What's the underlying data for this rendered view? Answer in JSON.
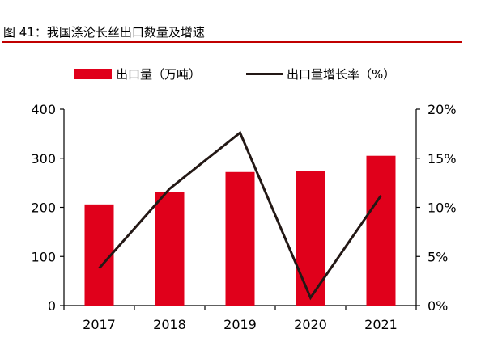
{
  "figure": {
    "title": "图 41：我国涤沦长丝出口数量及增速",
    "accent_color": "#C00000"
  },
  "chart_data": {
    "type": "bar",
    "categories": [
      "2017",
      "2018",
      "2019",
      "2020",
      "2021"
    ],
    "series": [
      {
        "name": "出口量（万吨）",
        "type": "bar",
        "axis": "left",
        "color": "#E0001B",
        "values": [
          206,
          231,
          272,
          274,
          305
        ]
      },
      {
        "name": "出口量增长率（%）",
        "type": "line",
        "axis": "right",
        "color": "#231815",
        "values": [
          3.8,
          11.9,
          17.6,
          0.8,
          11.2
        ]
      }
    ],
    "y_left": {
      "ylim": [
        0,
        400
      ],
      "ticks": [
        0,
        100,
        200,
        300,
        400
      ],
      "tick_labels": [
        "0",
        "100",
        "200",
        "300",
        "400"
      ]
    },
    "y_right": {
      "ylim": [
        0,
        20
      ],
      "ticks": [
        0,
        5,
        10,
        15,
        20
      ],
      "tick_labels": [
        "0%",
        "5%",
        "10%",
        "15%",
        "20%"
      ]
    },
    "grid": false,
    "legend_position": "top"
  }
}
